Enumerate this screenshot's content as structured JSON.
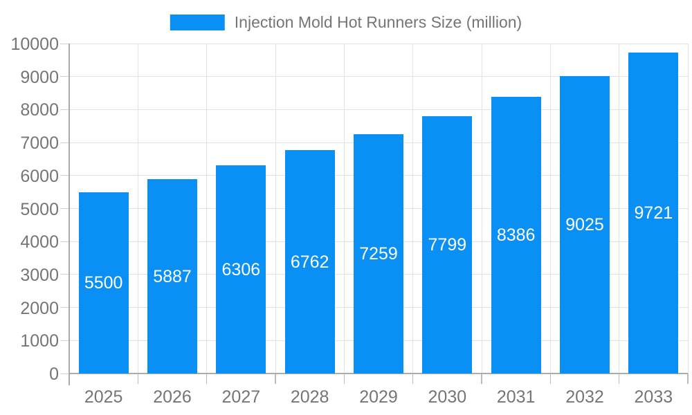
{
  "chart_data": {
    "type": "bar",
    "title": "Injection Mold Hot Runners Size (million)",
    "legend": {
      "label": "Injection Mold Hot Runners Size (million)",
      "position": "top-center"
    },
    "categories": [
      "2025",
      "2026",
      "2027",
      "2028",
      "2029",
      "2030",
      "2031",
      "2032",
      "2033"
    ],
    "values": [
      5500,
      5887,
      6306,
      6762,
      7259,
      7799,
      8386,
      9025,
      9721
    ],
    "xlabel": "",
    "ylabel": "",
    "ylim": [
      0,
      10000
    ],
    "ytick_step": 1000,
    "ytick_labels": [
      "0",
      "1000",
      "2000",
      "3000",
      "4000",
      "5000",
      "6000",
      "7000",
      "8000",
      "9000",
      "10000"
    ],
    "grid": {
      "horizontal": true,
      "vertical": true
    },
    "value_labels": {
      "position": "center-of-bar"
    },
    "colors": {
      "bar": "#0a90f5",
      "value_label": "#ffffff",
      "tick_label": "#757575",
      "legend_text": "#757575",
      "gridline": "#e2e2e2",
      "axis_line": "#ababab",
      "ytick_mark": "#d0d0d0",
      "xtick_mark": "#bbbbbb",
      "background": "#ffffff"
    }
  }
}
